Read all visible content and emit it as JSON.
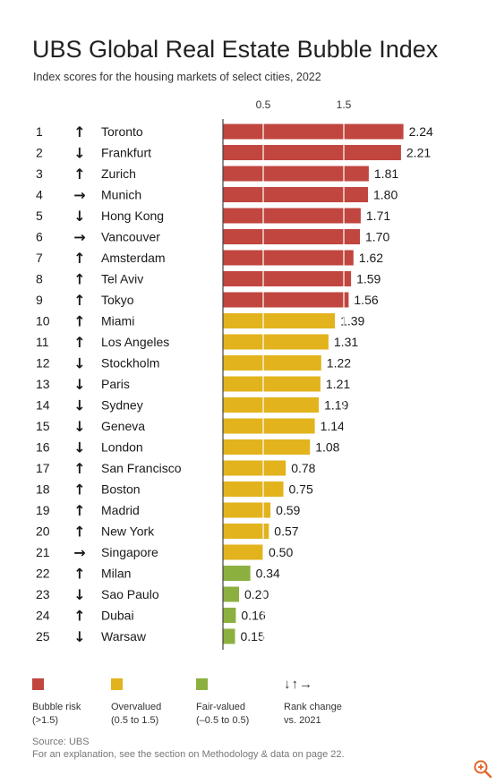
{
  "title": "UBS Global Real Estate Bubble Index",
  "subtitle": "Index scores for the housing markets of select cities, 2022",
  "colors": {
    "bubble": "#c0463f",
    "overvalued": "#e2b31d",
    "fair": "#8cb040",
    "grid": "#ffffff"
  },
  "chart_data": {
    "type": "bar",
    "orientation": "horizontal",
    "title": "UBS Global Real Estate Bubble Index",
    "subtitle": "Index scores for the housing markets of select cities, 2022",
    "x_ticks": [
      "0.5",
      "1.5"
    ],
    "xlim": [
      0,
      2.24
    ],
    "grid": true,
    "ranks": [
      "1",
      "2",
      "3",
      "4",
      "5",
      "6",
      "7",
      "8",
      "9",
      "10",
      "11",
      "12",
      "13",
      "14",
      "15",
      "16",
      "17",
      "18",
      "19",
      "20",
      "21",
      "22",
      "23",
      "24",
      "25"
    ],
    "rank_change": [
      "up",
      "down",
      "up",
      "right",
      "down",
      "right",
      "up",
      "up",
      "up",
      "up",
      "up",
      "down",
      "down",
      "down",
      "down",
      "down",
      "up",
      "up",
      "up",
      "up",
      "right",
      "up",
      "down",
      "up",
      "down"
    ],
    "categories": [
      "Toronto",
      "Frankfurt",
      "Zurich",
      "Munich",
      "Hong Kong",
      "Vancouver",
      "Amsterdam",
      "Tel Aviv",
      "Tokyo",
      "Miami",
      "Los Angeles",
      "Stockholm",
      "Paris",
      "Sydney",
      "Geneva",
      "London",
      "San Francisco",
      "Boston",
      "Madrid",
      "New York",
      "Singapore",
      "Milan",
      "Sao Paulo",
      "Dubai",
      "Warsaw"
    ],
    "values": [
      2.24,
      2.21,
      1.81,
      1.8,
      1.71,
      1.7,
      1.62,
      1.59,
      1.56,
      1.39,
      1.31,
      1.22,
      1.21,
      1.19,
      1.14,
      1.08,
      0.78,
      0.75,
      0.59,
      0.57,
      0.5,
      0.34,
      0.2,
      0.16,
      0.15
    ],
    "value_labels": [
      "2.24",
      "2.21",
      "1.81",
      "1.80",
      "1.71",
      "1.70",
      "1.62",
      "1.59",
      "1.56",
      "1.39",
      "1.31",
      "1.22",
      "1.21",
      "1.19",
      "1.14",
      "1.08",
      "0.78",
      "0.75",
      "0.59",
      "0.57",
      "0.50",
      "0.34",
      "0.20",
      "0.16",
      "0.15"
    ],
    "categories_color": [
      "bubble",
      "bubble",
      "bubble",
      "bubble",
      "bubble",
      "bubble",
      "bubble",
      "bubble",
      "bubble",
      "overvalued",
      "overvalued",
      "overvalued",
      "overvalued",
      "overvalued",
      "overvalued",
      "overvalued",
      "overvalued",
      "overvalued",
      "overvalued",
      "overvalued",
      "overvalued",
      "fair",
      "fair",
      "fair",
      "fair"
    ]
  },
  "legend": {
    "bubble": {
      "label": "Bubble risk",
      "range": "(>1.5)"
    },
    "overvalued": {
      "label": "Overvalued",
      "range": "(0.5 to 1.5)"
    },
    "fair": {
      "label": "Fair-valued",
      "range": "(–0.5 to 0.5)"
    },
    "rank": {
      "arrows": "↓↑→",
      "label": "Rank change",
      "sub": "vs. 2021"
    }
  },
  "source": {
    "line1": "Source: UBS",
    "line2": "For an explanation, see the section on Methodology & data on page 22."
  },
  "icons": {
    "zoom": "zoom-in-icon"
  }
}
